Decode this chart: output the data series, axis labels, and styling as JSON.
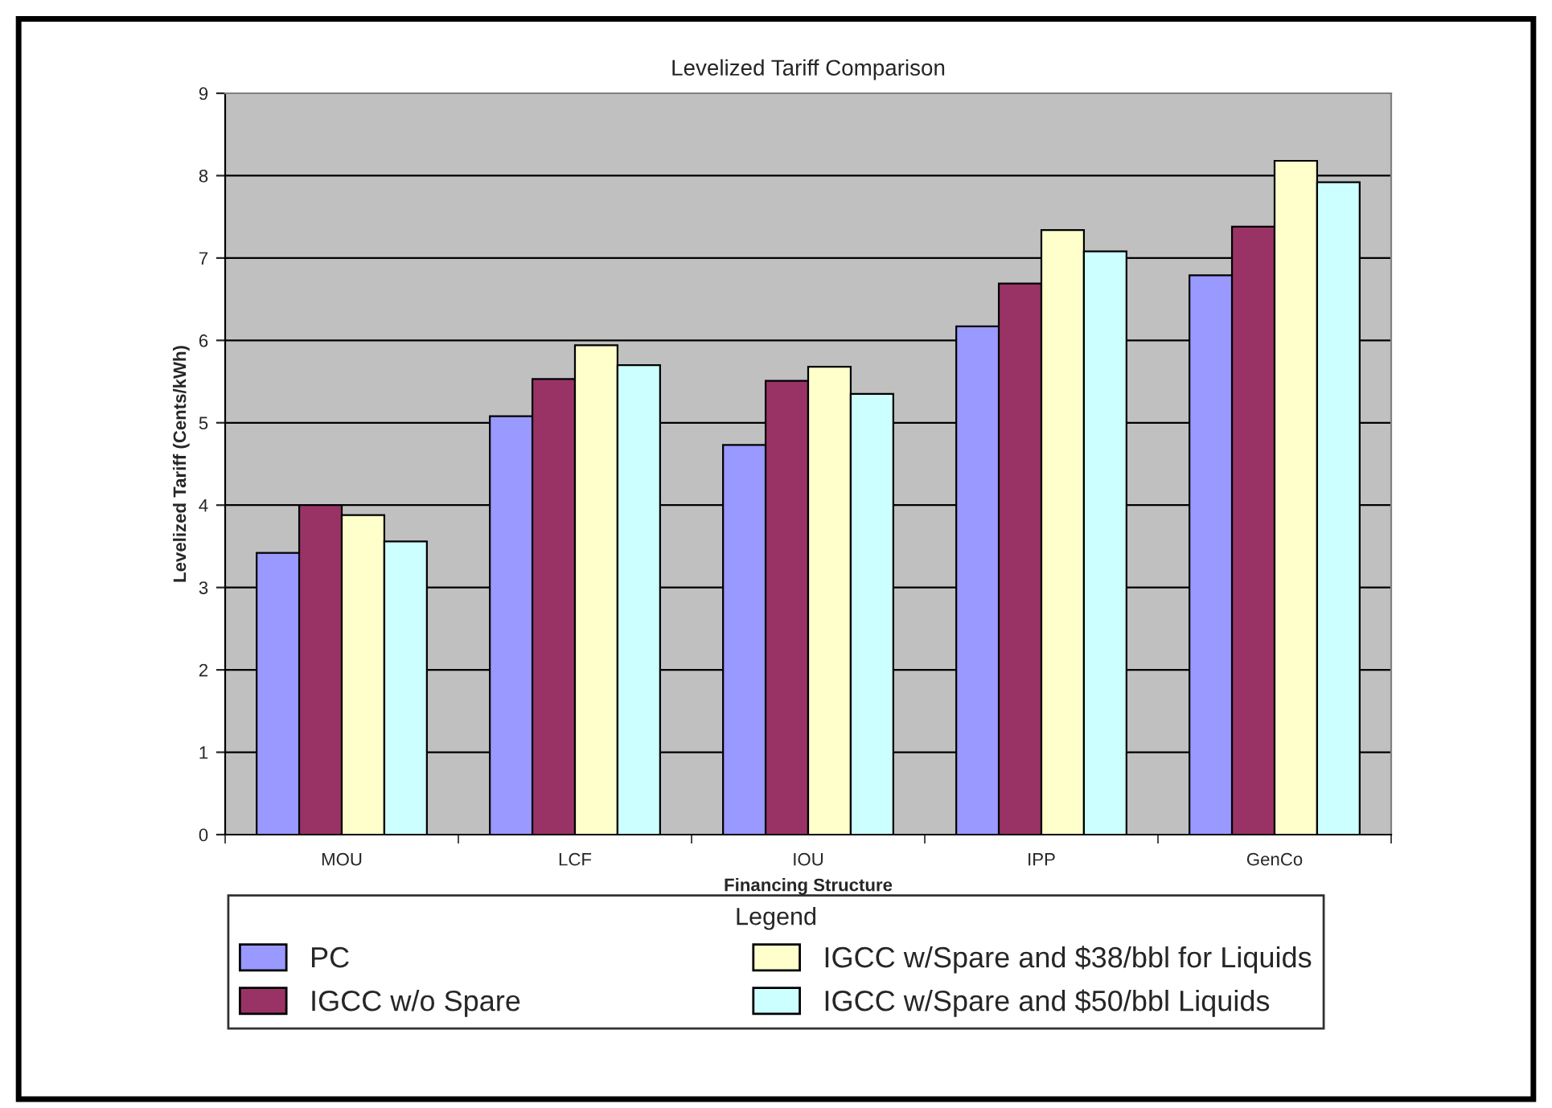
{
  "chart_data": {
    "type": "bar",
    "title": "Levelized Tariff Comparison",
    "xlabel": "Financing Structure",
    "ylabel": "Levelized Tariff (Cents/kWh)",
    "legend_title": "Legend",
    "categories": [
      "MOU",
      "LCF",
      "IOU",
      "IPP",
      "GenCo"
    ],
    "series": [
      {
        "name": "PC",
        "color": "#9999ff",
        "values": [
          3.42,
          5.08,
          4.73,
          6.17,
          6.79
        ]
      },
      {
        "name": "IGCC w/o Spare",
        "color": "#993366",
        "values": [
          4.0,
          5.53,
          5.51,
          6.69,
          7.38
        ]
      },
      {
        "name": "IGCC w/Spare and $38/bbl for Liquids",
        "color": "#ffffcc",
        "values": [
          3.88,
          5.94,
          5.68,
          7.34,
          8.18
        ]
      },
      {
        "name": "IGCC w/Spare and $50/bbl Liquids",
        "color": "#ccffff",
        "values": [
          3.56,
          5.7,
          5.35,
          7.08,
          7.92
        ]
      }
    ],
    "ylim": [
      0,
      9
    ],
    "yticks": [
      0,
      1,
      2,
      3,
      4,
      5,
      6,
      7,
      8,
      9
    ],
    "grid": "y",
    "legend": "bottom"
  }
}
